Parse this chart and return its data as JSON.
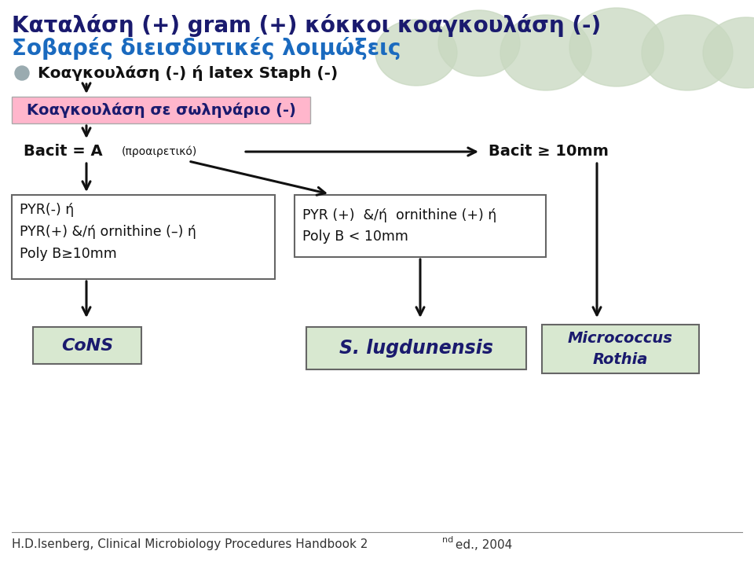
{
  "bg_color": "#ffffff",
  "title_line1": "Καταλάση (+) gram (+) κόκκοι κοαγκουλάση (-)",
  "title_line2": "Σοβαρές διεισδυτικές λοιμώξεις",
  "title_line1_color": "#1a1a6e",
  "title_line2_color": "#1a6abf",
  "bubble_color": "#c8d8c0",
  "bubble_outline": "#c0d0b8",
  "bullet_color": "#9aabb0",
  "step1_text": "Κοαγκουλάση (-) ή latex Staph (-)",
  "box_pink_text": "Κοαγκουλάση σε σωληνάριο (-)",
  "box_pink_bg": "#ffb6cc",
  "box_pink_text_color": "#1a1a6e",
  "bacit_right_text": "Bacit ≥ 10mm",
  "box_left_text": "PYR(-) ή\nPYR(+) &/ή ornithine (–) ή\nPoly B≥10mm",
  "box_mid_text": "PYR (+)  &/ή  ornithine (+) ή\nPoly B < 10mm",
  "box_cons_text": "CoNS",
  "box_slug_text": "S. lugdunensis",
  "box_micro_text": "Micrococcus\nRothia",
  "box_light_green": "#d8e8d0",
  "box_border_color": "#666666",
  "footer": "H.D.Isenberg, Clinical Microbiology Procedures Handbook 2",
  "footer_super": "nd",
  "footer_end": " ed., 2004",
  "footer_color": "#333333",
  "arrow_color": "#111111"
}
